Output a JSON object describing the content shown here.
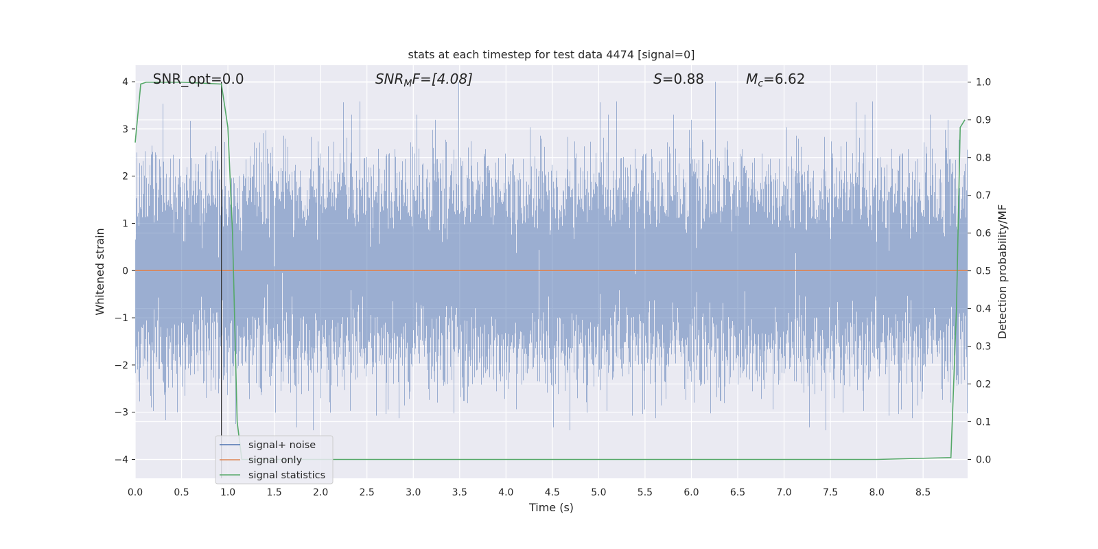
{
  "chart_data": {
    "type": "line",
    "title": "stats at each timestep for test data 4474 [signal=0]",
    "xlabel": "Time (s)",
    "ylabel": "Whitened strain",
    "y2label": "Detection probability/MF",
    "xlim": [
      0.0,
      8.98
    ],
    "ylim": [
      -4.4,
      4.35
    ],
    "y2lim": [
      -0.05,
      1.045
    ],
    "xticks": [
      "0.0",
      "0.5",
      "1.0",
      "1.5",
      "2.0",
      "2.5",
      "3.0",
      "3.5",
      "4.0",
      "4.5",
      "5.0",
      "5.5",
      "6.0",
      "6.5",
      "7.0",
      "7.5",
      "8.0",
      "8.5"
    ],
    "xtick_values": [
      0.0,
      0.5,
      1.0,
      1.5,
      2.0,
      2.5,
      3.0,
      3.5,
      4.0,
      4.5,
      5.0,
      5.5,
      6.0,
      6.5,
      7.0,
      7.5,
      8.0,
      8.5
    ],
    "yticks": [
      "−4",
      "−3",
      "−2",
      "−1",
      "0",
      "1",
      "2",
      "3",
      "4"
    ],
    "ytick_values": [
      -4,
      -3,
      -2,
      -1,
      0,
      1,
      2,
      3,
      4
    ],
    "y2ticks": [
      "0.0",
      "0.1",
      "0.2",
      "0.3",
      "0.4",
      "0.5",
      "0.6",
      "0.7",
      "0.8",
      "0.9",
      "1.0"
    ],
    "y2tick_values": [
      0.0,
      0.1,
      0.2,
      0.3,
      0.4,
      0.5,
      0.6,
      0.7,
      0.8,
      0.9,
      1.0
    ],
    "grid": true,
    "legend_placement": "lower-left",
    "annotations": [
      {
        "id": "snr_opt",
        "text": "SNR_opt=0.0",
        "x": 0.19,
        "y": 4.0
      },
      {
        "id": "snr_mf",
        "text": "SNRMF=[4.08]",
        "x": 2.59,
        "y": 4.0
      },
      {
        "id": "s",
        "text": "S=0.88",
        "x": 5.59,
        "y": 4.0
      },
      {
        "id": "mc",
        "text": "Mc=6.62",
        "x": 6.59,
        "y": 4.0
      }
    ],
    "annotation_parts": {
      "snr_mf_main": "SNR",
      "snr_mf_sub": "M",
      "snr_mf_rest": "F=[4.08]",
      "mc_main": "M",
      "mc_sub": "c",
      "mc_rest": "=6.62",
      "s_main": "S",
      "s_rest": "=0.88"
    },
    "vline_x": 0.93,
    "series": [
      {
        "name": "signal+ noise",
        "color": "#4c72b0",
        "axis": "left",
        "description_kind": "noise",
        "noise_sigma": 1.0,
        "sample_rate_hz": 2048
      },
      {
        "name": "signal only",
        "color": "#dd8452",
        "axis": "left",
        "x": [
          0.0,
          8.98
        ],
        "y": [
          0.0,
          0.0
        ]
      },
      {
        "name": "signal statistics",
        "color": "#55a868",
        "axis": "right",
        "x": [
          0.0,
          0.06,
          0.12,
          0.5,
          0.93,
          1.0,
          1.05,
          1.08,
          1.1,
          1.15,
          2.0,
          4.0,
          6.0,
          8.0,
          8.8,
          8.86,
          8.9,
          8.95
        ],
        "y": [
          0.84,
          0.995,
          1.0,
          1.0,
          0.995,
          0.88,
          0.6,
          0.3,
          0.1,
          0.0,
          0.0,
          0.0,
          0.0,
          0.0,
          0.005,
          0.4,
          0.88,
          0.9
        ]
      }
    ]
  }
}
